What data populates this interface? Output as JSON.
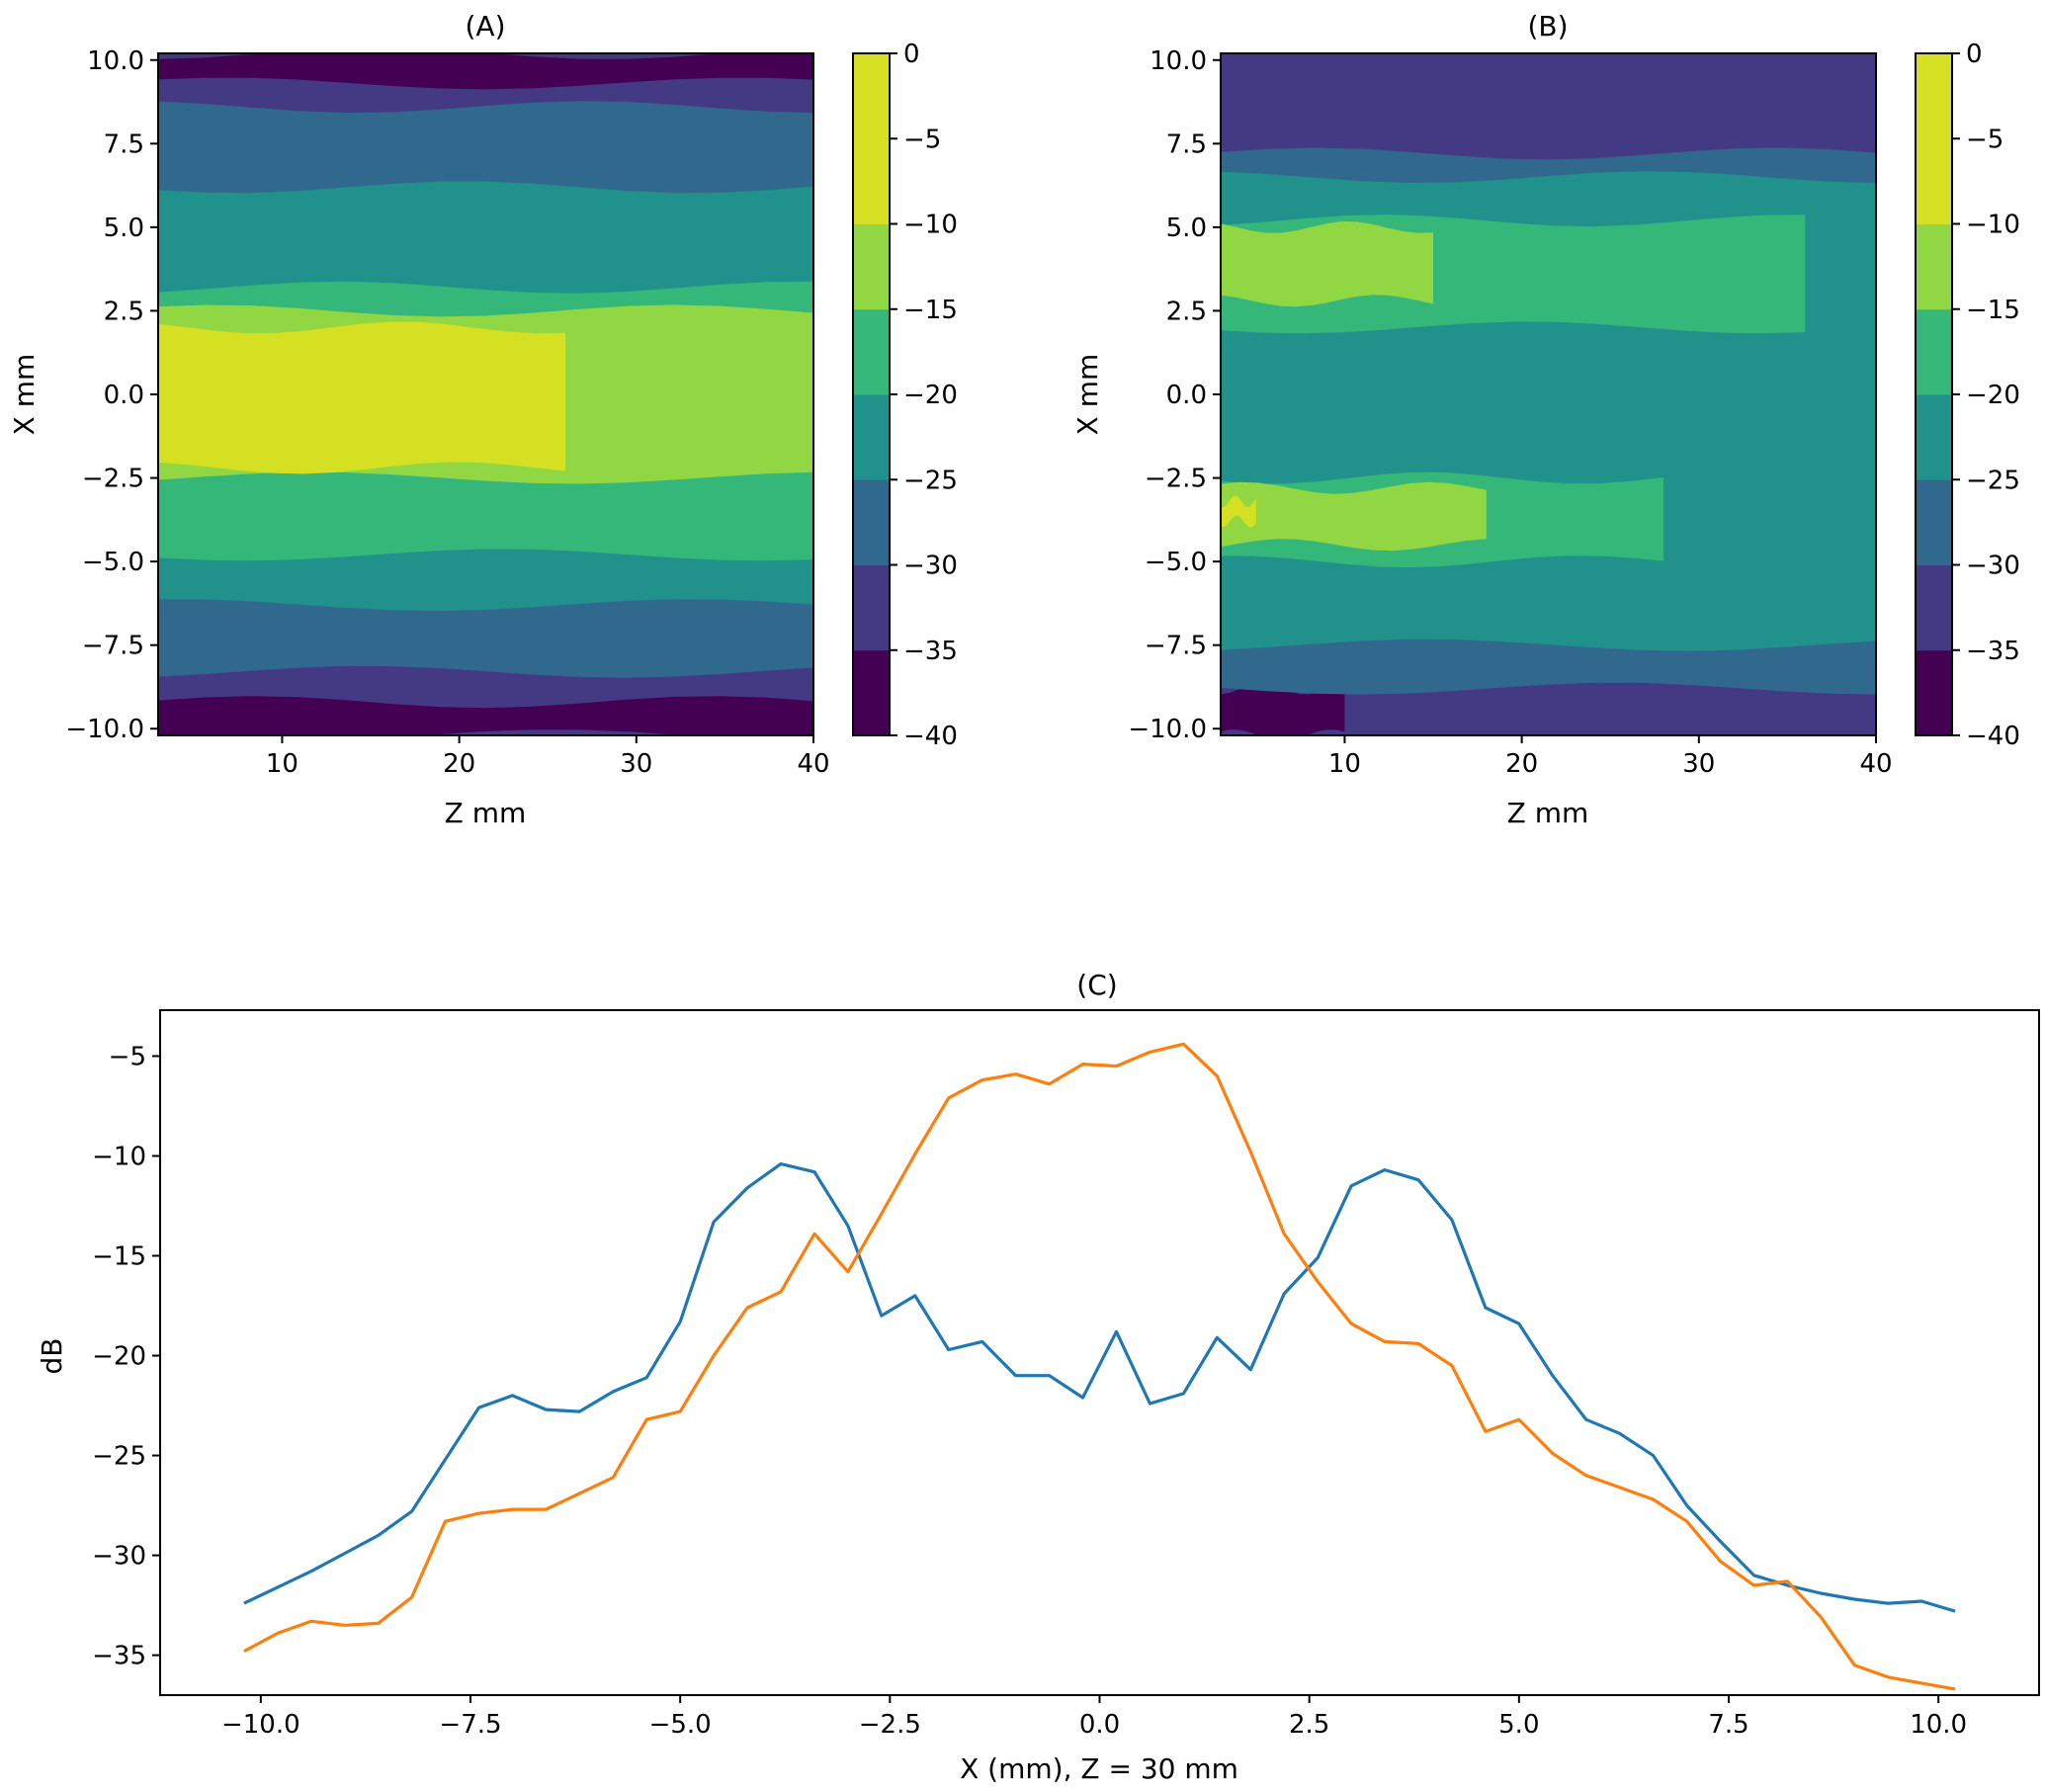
{
  "colors": {
    "blue": "#1f77b4",
    "orange": "#ff7f0e",
    "levels": [
      "#440154",
      "#443983",
      "#31688e",
      "#21918c",
      "#35b779",
      "#90d743",
      "#d4e021"
    ]
  },
  "chart_data": [
    {
      "type": "heatmap",
      "subtype": "filled-contour",
      "title": "(A)",
      "xlabel": "Z mm",
      "ylabel": "X mm",
      "xlim": [
        3,
        40
      ],
      "ylim": [
        -10.2,
        10.2
      ],
      "xticks": [
        "10",
        "20",
        "30",
        "40"
      ],
      "yticks": [
        "10.0",
        "7.5",
        "5.0",
        "2.5",
        "0.0",
        "−2.5",
        "−5.0",
        "−7.5",
        "−10.0"
      ],
      "colorbar_ticks": [
        "0",
        "−5",
        "−10",
        "−15",
        "−20",
        "−25",
        "−30",
        "−35",
        "−40"
      ],
      "levels_db": [
        -40,
        -35,
        -30,
        -25,
        -20,
        -15,
        -10,
        -5,
        0
      ],
      "bands": [
        {
          "level": 1,
          "x": [
            -10.2,
            10.2
          ]
        },
        {
          "level": 0,
          "x": [
            9.3,
            10.2
          ],
          "z": [
            3,
            40
          ]
        },
        {
          "level": 0,
          "x": [
            -10.2,
            -9.2
          ],
          "z": [
            3,
            40
          ]
        },
        {
          "level": 2,
          "x": [
            -8.3,
            8.6
          ],
          "z": [
            3,
            40
          ]
        },
        {
          "level": 3,
          "x": [
            -6.3,
            6.2
          ],
          "z": [
            3,
            40
          ]
        },
        {
          "level": 4,
          "x": [
            -4.8,
            3.2
          ],
          "z": [
            3,
            40
          ]
        },
        {
          "level": 5,
          "x": [
            -2.5,
            2.5
          ],
          "z": [
            3,
            40
          ]
        },
        {
          "level": 6,
          "x": [
            -2.2,
            2.0
          ],
          "z": [
            3,
            26
          ]
        }
      ]
    },
    {
      "type": "heatmap",
      "subtype": "filled-contour",
      "title": "(B)",
      "xlabel": "Z mm",
      "ylabel": "X mm",
      "xlim": [
        3,
        40
      ],
      "ylim": [
        -10.2,
        10.2
      ],
      "xticks": [
        "10",
        "20",
        "30",
        "40"
      ],
      "yticks": [
        "10.0",
        "7.5",
        "5.0",
        "2.5",
        "0.0",
        "−2.5",
        "−5.0",
        "−7.5",
        "−10.0"
      ],
      "colorbar_ticks": [
        "0",
        "−5",
        "−10",
        "−15",
        "−20",
        "−25",
        "−30",
        "−35",
        "−40"
      ],
      "levels_db": [
        -40,
        -35,
        -30,
        -25,
        -20,
        -15,
        -10,
        -5,
        0
      ],
      "bands": [
        {
          "level": 1,
          "x": [
            -10.2,
            10.2
          ]
        },
        {
          "level": 0,
          "x": [
            -10.2,
            -8.8
          ],
          "z": [
            3,
            10
          ]
        },
        {
          "level": 2,
          "x": [
            -8.8,
            7.2
          ],
          "z": [
            3,
            40
          ]
        },
        {
          "level": 3,
          "x": [
            -7.5,
            6.5
          ],
          "z": [
            3,
            40
          ]
        },
        {
          "level": 4,
          "x": [
            -5.0,
            -2.5
          ],
          "z": [
            3,
            28
          ]
        },
        {
          "level": 4,
          "x": [
            2.0,
            5.2
          ],
          "z": [
            3,
            36
          ]
        },
        {
          "level": 5,
          "x": [
            -4.5,
            -2.8
          ],
          "z": [
            3,
            18
          ]
        },
        {
          "level": 5,
          "x": [
            2.8,
            5.0
          ],
          "z": [
            3,
            15
          ]
        },
        {
          "level": 6,
          "x": [
            -3.8,
            -3.2
          ],
          "z": [
            3,
            5
          ]
        }
      ]
    },
    {
      "type": "line",
      "title": "(C)",
      "xlabel": "X (mm), Z = 30 mm",
      "ylabel": "dB",
      "xlim": [
        -11.2,
        11.2
      ],
      "ylim": [
        -37.0,
        -2.7
      ],
      "xticks": [
        "−10.0",
        "−7.5",
        "−5.0",
        "−2.5",
        "0.0",
        "2.5",
        "5.0",
        "7.5",
        "10.0"
      ],
      "yticks": [
        "−5",
        "−10",
        "−15",
        "−20",
        "−25",
        "−30",
        "−35"
      ],
      "x": [
        -10.2,
        -9.8,
        -9.4,
        -9.0,
        -8.6,
        -8.2,
        -7.8,
        -7.4,
        -7.0,
        -6.6,
        -6.2,
        -5.8,
        -5.4,
        -5.0,
        -4.6,
        -4.2,
        -3.8,
        -3.4,
        -3.0,
        -2.6,
        -2.2,
        -1.8,
        -1.4,
        -1.0,
        -0.6,
        -0.2,
        0.2,
        0.6,
        1.0,
        1.4,
        1.8,
        2.2,
        2.6,
        3.0,
        3.4,
        3.8,
        4.2,
        4.6,
        5.0,
        5.4,
        5.8,
        6.2,
        6.6,
        7.0,
        7.4,
        7.8,
        8.2,
        8.6,
        9.0,
        9.4,
        9.8,
        10.2
      ],
      "series": [
        {
          "color_key": "blue",
          "values": [
            -32.4,
            -31.6,
            -30.8,
            -29.9,
            -29.0,
            -27.8,
            -25.2,
            -22.6,
            -22.0,
            -22.7,
            -22.8,
            -21.8,
            -21.1,
            -18.3,
            -13.3,
            -11.6,
            -10.4,
            -10.8,
            -13.5,
            -18.0,
            -17.0,
            -19.7,
            -19.3,
            -21.0,
            -21.0,
            -22.1,
            -18.8,
            -22.4,
            -21.9,
            -19.1,
            -20.7,
            -16.9,
            -15.1,
            -11.5,
            -10.7,
            -11.2,
            -13.2,
            -17.6,
            -18.4,
            -21.0,
            -23.2,
            -23.9,
            -25.0,
            -27.5,
            -29.3,
            -31.0,
            -31.5,
            -31.9,
            -32.2,
            -32.4,
            -32.3,
            -32.8
          ]
        },
        {
          "color_key": "orange",
          "values": [
            -34.8,
            -33.9,
            -33.3,
            -33.5,
            -33.4,
            -32.1,
            -28.3,
            -27.9,
            -27.7,
            -27.7,
            -26.9,
            -26.1,
            -23.2,
            -22.8,
            -20.0,
            -17.6,
            -16.8,
            -13.9,
            -15.8,
            -12.9,
            -9.9,
            -7.1,
            -6.2,
            -5.9,
            -6.4,
            -5.4,
            -5.5,
            -4.8,
            -4.4,
            -6.0,
            -9.8,
            -13.9,
            -16.3,
            -18.4,
            -19.3,
            -19.4,
            -20.5,
            -23.8,
            -23.2,
            -24.9,
            -26.0,
            -26.6,
            -27.2,
            -28.3,
            -30.3,
            -31.5,
            -31.3,
            -33.1,
            -35.5,
            -36.1,
            -36.4,
            -36.7
          ]
        }
      ]
    }
  ]
}
